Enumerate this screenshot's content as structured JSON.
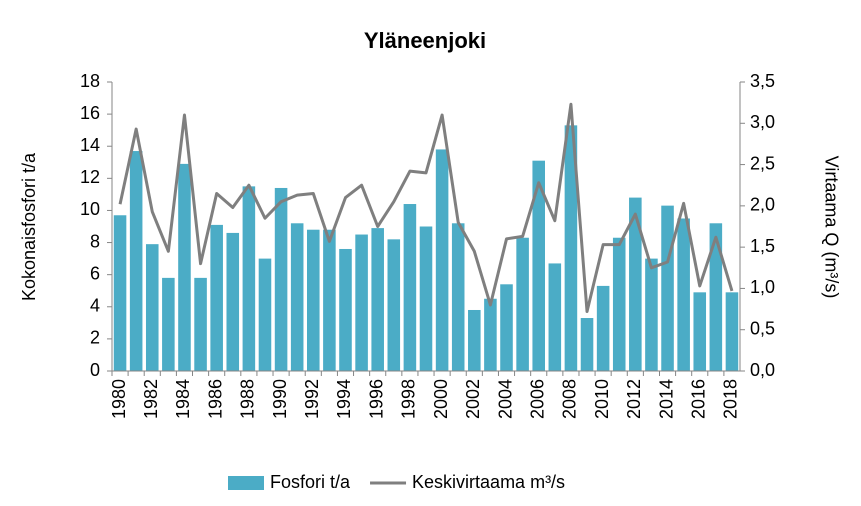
{
  "chart_data": {
    "type": "bar",
    "title": "Yläneenjoki",
    "y_label": "Kokonaisfosfori t/a",
    "y2_label": "Virtaama Q (m³/s)",
    "categories": [
      "1980",
      null,
      "1982",
      null,
      "1984",
      null,
      "1986",
      null,
      "1988",
      null,
      "1990",
      null,
      "1992",
      null,
      "1994",
      null,
      "1996",
      null,
      "1998",
      null,
      "2000",
      null,
      "2002",
      null,
      "2004",
      null,
      "2006",
      null,
      "2008",
      null,
      "2010",
      null,
      "2012",
      null,
      "2014",
      null,
      "2016",
      null,
      "2018"
    ],
    "series": [
      {
        "name": "Fosfori t/a",
        "type": "bar",
        "color": "#4bacc6",
        "values": [
          9.7,
          13.7,
          7.9,
          5.8,
          12.9,
          5.8,
          9.1,
          8.6,
          11.5,
          7.0,
          11.4,
          9.2,
          8.8,
          8.8,
          7.6,
          8.5,
          8.9,
          8.2,
          10.4,
          9.0,
          13.8,
          9.2,
          3.8,
          4.5,
          5.4,
          8.3,
          13.1,
          6.7,
          15.3,
          3.3,
          5.3,
          8.3,
          10.8,
          7.0,
          10.3,
          9.5,
          4.9,
          9.2,
          4.9
        ]
      },
      {
        "name": "Keskivirtaama m³/s",
        "type": "line",
        "axis": "y2",
        "color": "#7f7f7f",
        "values": [
          2.02,
          2.93,
          1.93,
          1.45,
          3.1,
          1.3,
          2.15,
          1.98,
          2.25,
          1.85,
          2.05,
          2.13,
          2.15,
          1.57,
          2.1,
          2.25,
          1.75,
          2.05,
          2.42,
          2.4,
          3.1,
          1.8,
          1.45,
          0.8,
          1.6,
          1.63,
          2.28,
          1.82,
          3.23,
          0.72,
          1.53,
          1.53,
          1.9,
          1.25,
          1.32,
          2.03,
          1.03,
          1.62,
          0.97
        ]
      }
    ],
    "ylim": [
      0,
      18
    ],
    "yticks": [
      0,
      2,
      4,
      6,
      8,
      10,
      12,
      14,
      16,
      18
    ],
    "y2lim": [
      0,
      3.5
    ],
    "y2ticks": [
      {
        "value": 0,
        "label": "0,0"
      },
      {
        "value": 0.5,
        "label": "0,5"
      },
      {
        "value": 1,
        "label": "1,0"
      },
      {
        "value": 1.5,
        "label": "1,5"
      },
      {
        "value": 2,
        "label": "2,0"
      },
      {
        "value": 2.5,
        "label": "2,5"
      },
      {
        "value": 3,
        "label": "3,0"
      },
      {
        "value": 3.5,
        "label": "3,5"
      }
    ],
    "grid": false,
    "legend": "bottom"
  }
}
